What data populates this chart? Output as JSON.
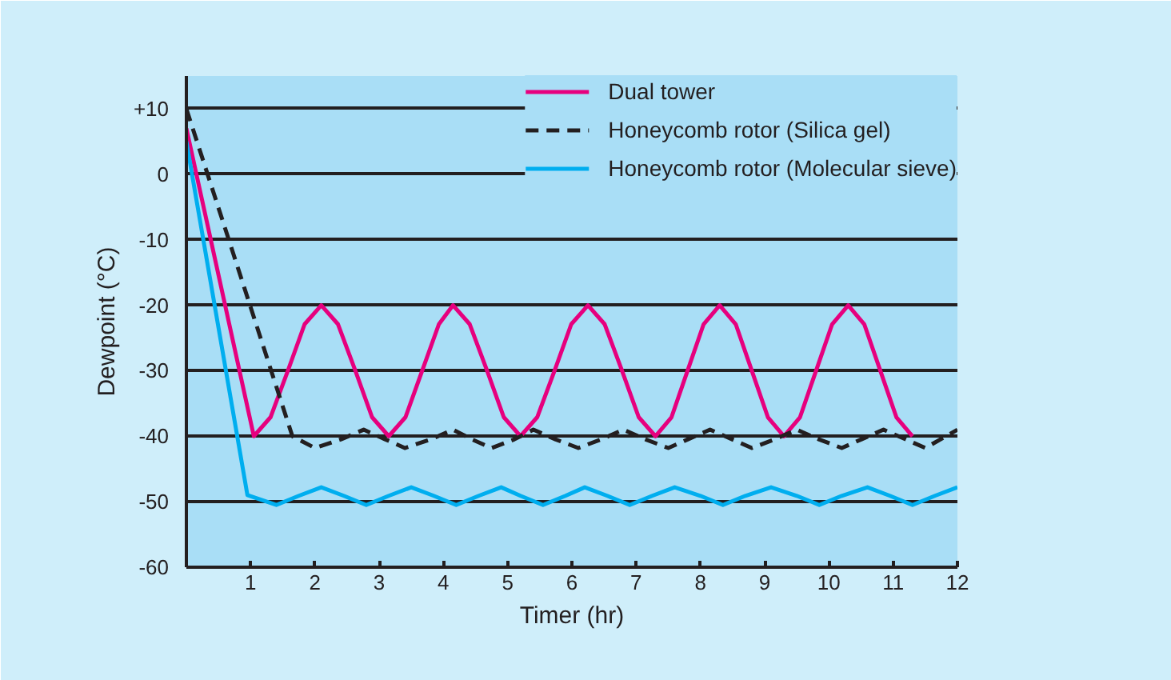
{
  "chart_data": {
    "type": "line",
    "xlabel": "Timer (hr)",
    "ylabel": "Dewpoint (°C)",
    "xlim": [
      0,
      12
    ],
    "ylim": [
      -60,
      15
    ],
    "xticks": [
      1,
      2,
      3,
      4,
      5,
      6,
      7,
      8,
      9,
      10,
      11,
      12
    ],
    "yticks": [
      {
        "value": 10,
        "label": "+10"
      },
      0,
      -10,
      -20,
      -30,
      -40,
      -50,
      -60
    ],
    "grid": "y",
    "legend": "top right",
    "series": [
      {
        "name": "Dual tower",
        "color": "#e6007e",
        "line_style": "solid",
        "x": [
          0,
          1.05,
          1.31,
          1.58,
          1.84,
          2.1,
          2.36,
          2.63,
          2.89,
          3.15,
          3.41,
          3.67,
          3.93,
          4.15,
          4.41,
          4.68,
          4.94,
          5.2,
          5.46,
          5.73,
          5.99,
          6.25,
          6.51,
          6.78,
          7.04,
          7.3,
          7.55,
          7.8,
          8.05,
          8.3,
          8.55,
          8.8,
          9.05,
          9.3,
          9.55,
          9.8,
          10.05,
          10.3,
          10.55,
          10.8,
          11.05,
          11.3
        ],
        "values": [
          7,
          -40,
          -37.1,
          -30,
          -22.9,
          -20,
          -22.9,
          -30,
          -37.1,
          -40,
          -37.1,
          -30,
          -22.9,
          -20,
          -22.9,
          -30,
          -37.1,
          -40,
          -37.1,
          -30,
          -22.9,
          -20,
          -22.9,
          -30,
          -37.1,
          -40,
          -37.1,
          -30,
          -22.9,
          -20,
          -22.9,
          -30,
          -37.1,
          -40,
          -37.1,
          -30,
          -22.9,
          -20,
          -22.9,
          -30,
          -37.1,
          -40
        ]
      },
      {
        "name": "Honeycomb rotor (Silica gel)",
        "color": "#231f20",
        "line_style": "dashed",
        "x": [
          0,
          1.65,
          2.0,
          2.4,
          2.76,
          3.1,
          3.4,
          3.8,
          4.15,
          4.45,
          4.75,
          5.1,
          5.4,
          5.75,
          6.1,
          6.45,
          6.8,
          7.15,
          7.5,
          7.8,
          8.15,
          8.5,
          8.8,
          9.15,
          9.5,
          9.85,
          10.2,
          10.5,
          10.85,
          11.2,
          11.5,
          12
        ],
        "values": [
          10,
          -40,
          -41.8,
          -40.5,
          -39,
          -40.5,
          -41.8,
          -40.5,
          -39,
          -40.5,
          -41.8,
          -40.5,
          -39,
          -40.5,
          -41.8,
          -40.5,
          -39,
          -40.5,
          -41.8,
          -40.5,
          -39,
          -40.5,
          -41.8,
          -40.5,
          -39,
          -40.5,
          -41.8,
          -40.5,
          -39,
          -40.5,
          -41.8,
          -39
        ]
      },
      {
        "name": "Honeycomb rotor (Molecular sieve)",
        "color": "#00aeef",
        "line_style": "solid",
        "x": [
          0,
          0.95,
          1.4,
          1.75,
          2.1,
          2.45,
          2.8,
          3.15,
          3.5,
          3.85,
          4.2,
          4.55,
          4.9,
          5.2,
          5.55,
          5.9,
          6.2,
          6.55,
          6.9,
          7.25,
          7.6,
          8.0,
          8.35,
          8.7,
          9.1,
          9.5,
          9.85,
          10.2,
          10.6,
          10.95,
          11.3,
          11.65,
          12
        ],
        "values": [
          5,
          -49,
          -50.5,
          -49.1,
          -47.8,
          -49.1,
          -50.5,
          -49.1,
          -47.8,
          -49.1,
          -50.5,
          -49.1,
          -47.8,
          -49.1,
          -50.5,
          -49.1,
          -47.8,
          -49.1,
          -50.5,
          -49.1,
          -47.8,
          -49.1,
          -50.5,
          -49.1,
          -47.8,
          -49.1,
          -50.5,
          -49.1,
          -47.8,
          -49.1,
          -50.5,
          -49.1,
          -47.8
        ]
      }
    ]
  }
}
